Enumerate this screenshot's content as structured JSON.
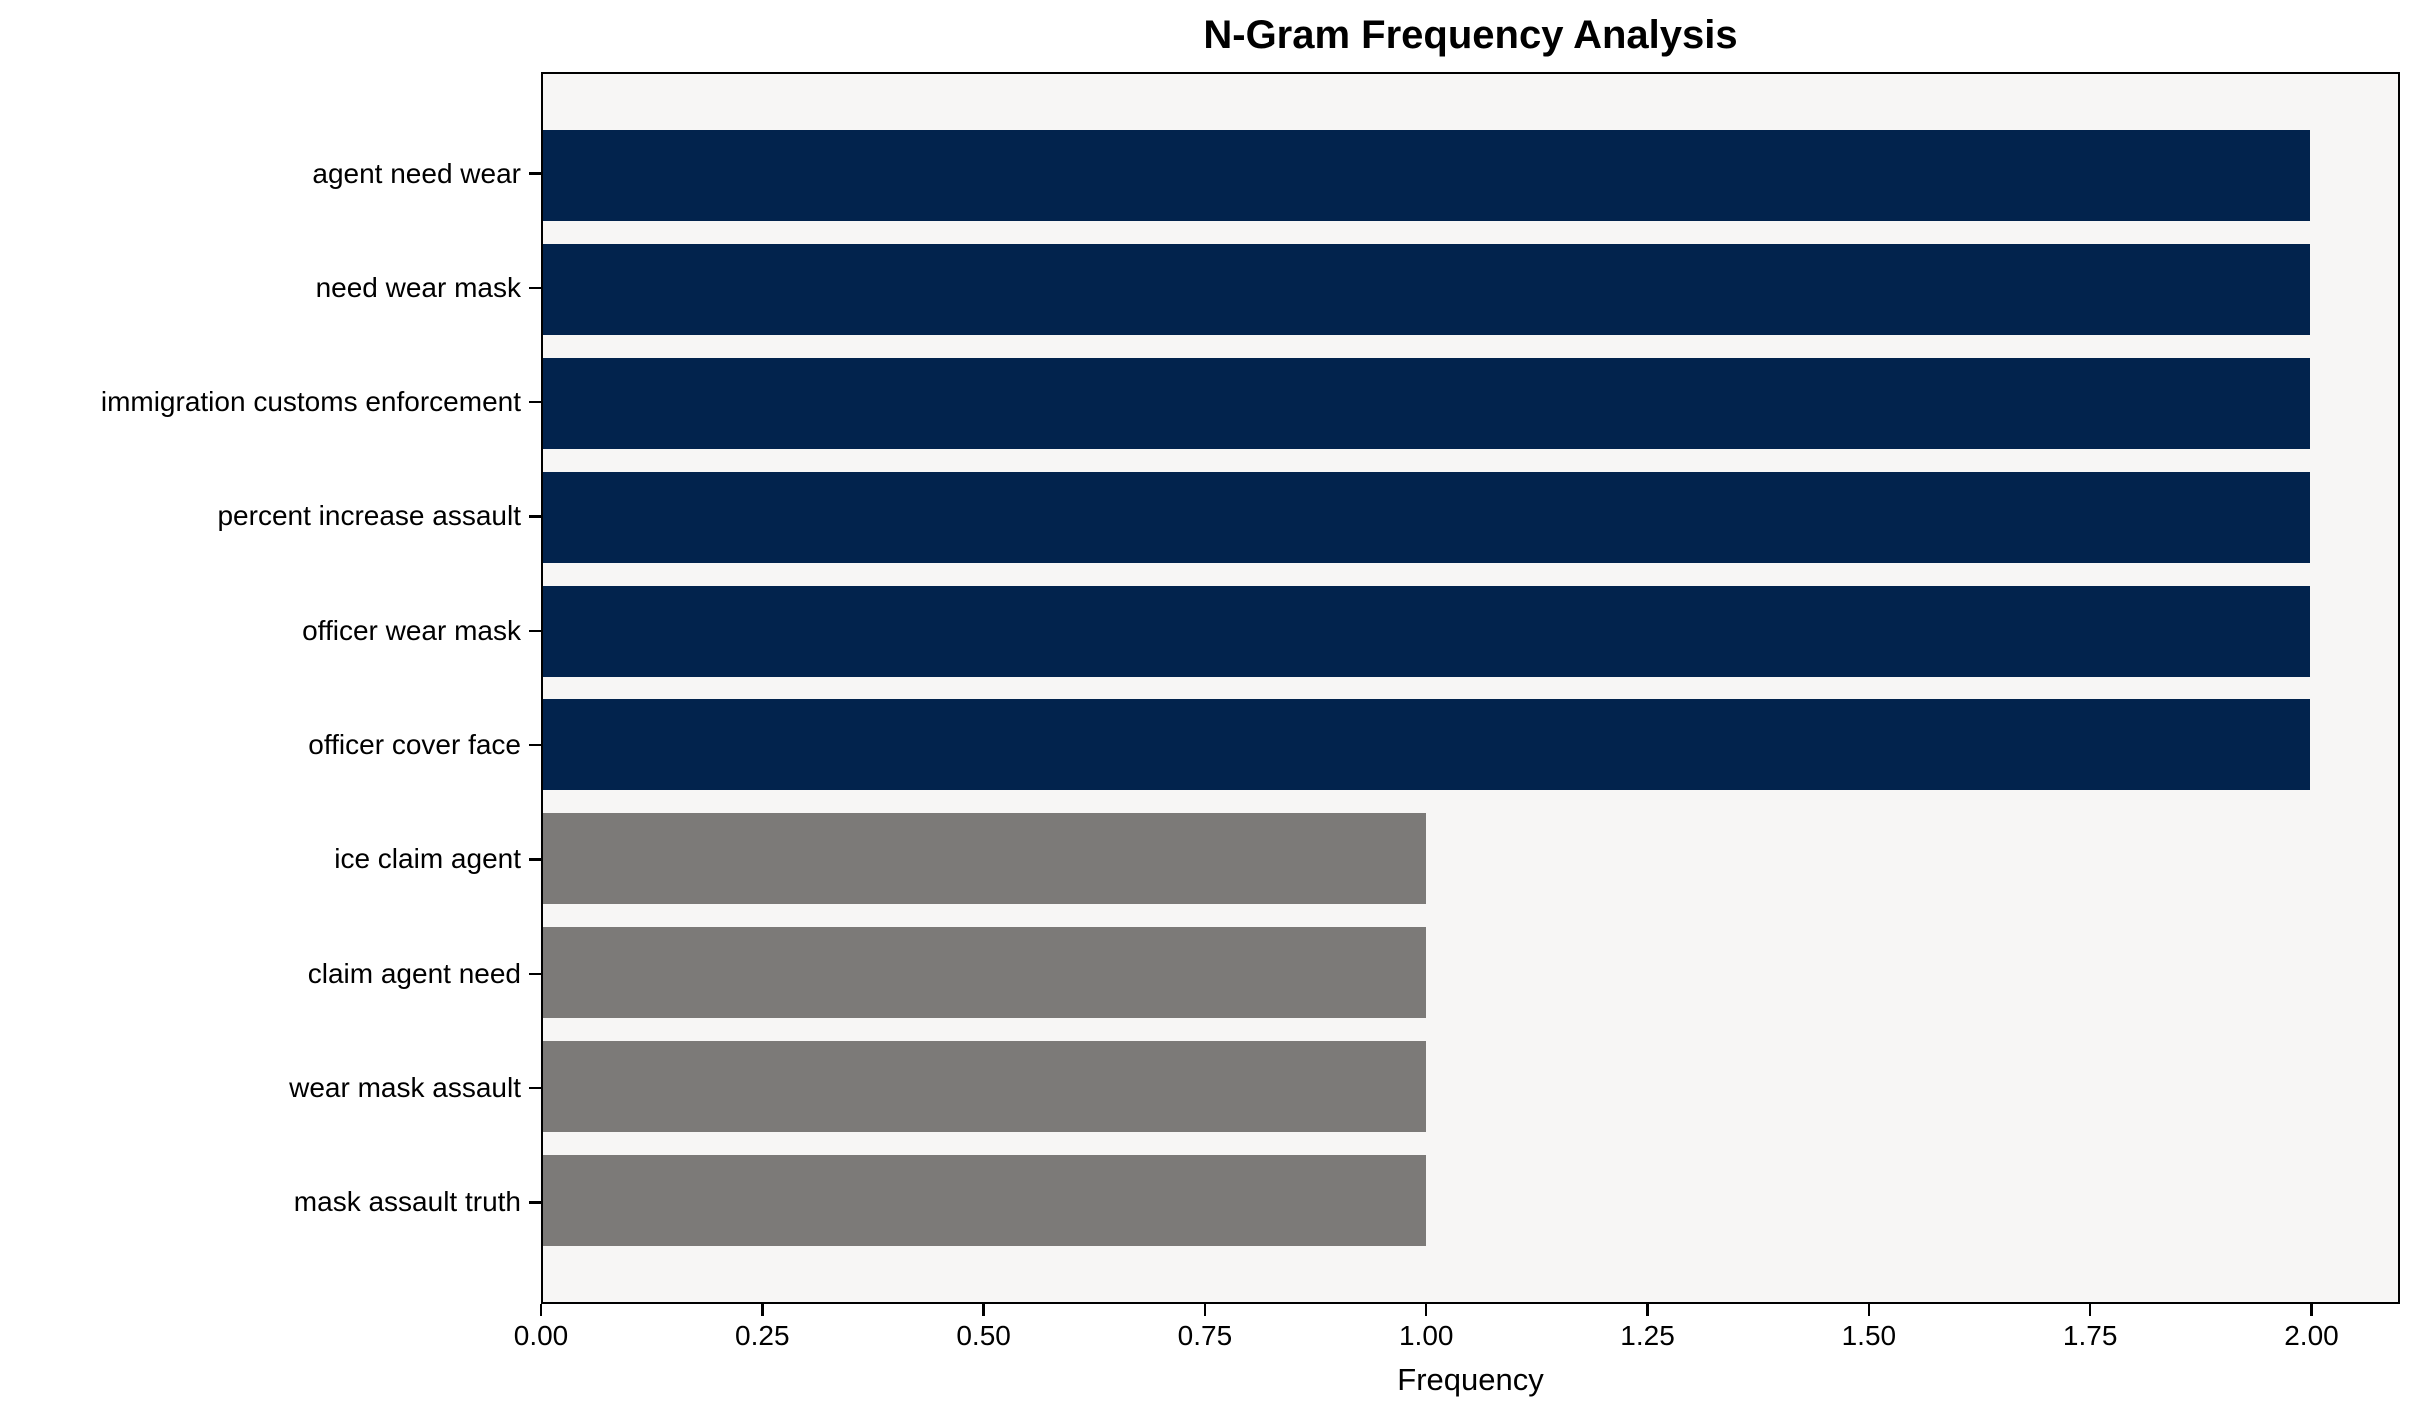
{
  "chart_data": {
    "type": "bar",
    "orientation": "horizontal",
    "title": "N-Gram Frequency Analysis",
    "xlabel": "Frequency",
    "ylabel": "",
    "categories": [
      "agent need wear",
      "need wear mask",
      "immigration customs enforcement",
      "percent increase assault",
      "officer wear mask",
      "officer cover face",
      "ice claim agent",
      "claim agent need",
      "wear mask assault",
      "mask assault truth"
    ],
    "values": [
      2,
      2,
      2,
      2,
      2,
      2,
      1,
      1,
      1,
      1
    ],
    "bar_colors": [
      "#02234d",
      "#02234d",
      "#02234d",
      "#02234d",
      "#02234d",
      "#02234d",
      "#7c7a78",
      "#7c7a78",
      "#7c7a78",
      "#7c7a78"
    ],
    "xlim": [
      0,
      2.1
    ],
    "x_ticks": [
      0.0,
      0.25,
      0.5,
      0.75,
      1.0,
      1.25,
      1.5,
      1.75,
      2.0
    ],
    "x_tick_labels": [
      "0.00",
      "0.25",
      "0.50",
      "0.75",
      "1.00",
      "1.25",
      "1.50",
      "1.75",
      "2.00"
    ],
    "grid": false,
    "legend": null
  },
  "colors": {
    "bar_primary": "#02234d",
    "bar_secondary": "#7c7a78",
    "plot_background": "#f7f6f5",
    "figure_background": "#ffffff",
    "frame": "#000000",
    "text": "#000000"
  }
}
